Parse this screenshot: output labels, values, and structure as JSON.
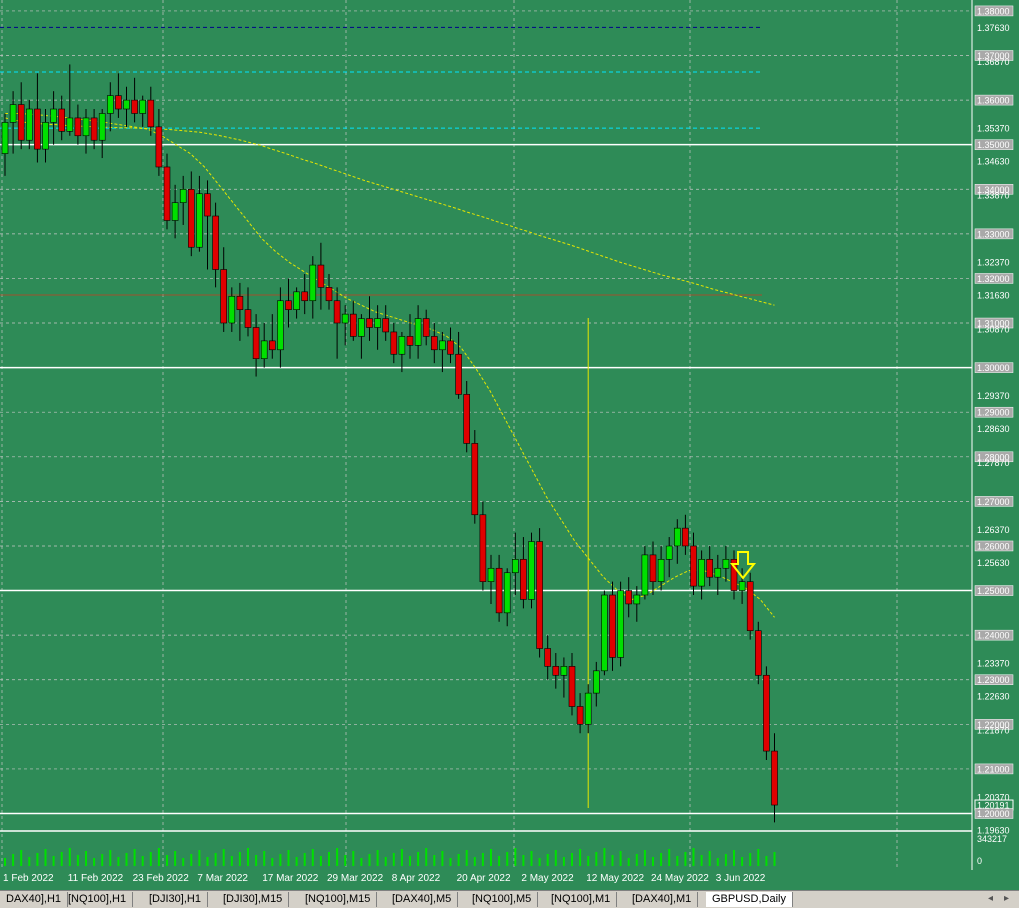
{
  "symbol": "GBPUSD,Daily",
  "price_axis": {
    "labels": [
      {
        "v": 1.38,
        "t": "1.38000",
        "boxed": true
      },
      {
        "v": 1.3763,
        "t": "1.37630",
        "boxed": false
      },
      {
        "v": 1.37,
        "t": "1.37000",
        "boxed": true
      },
      {
        "v": 1.3687,
        "t": "1.36870",
        "boxed": false
      },
      {
        "v": 1.36,
        "t": "1.36000",
        "boxed": true
      },
      {
        "v": 1.3537,
        "t": "1.35370",
        "boxed": false
      },
      {
        "v": 1.35,
        "t": "1.35000",
        "boxed": true
      },
      {
        "v": 1.3463,
        "t": "1.34630",
        "boxed": false
      },
      {
        "v": 1.34,
        "t": "1.34000",
        "boxed": true
      },
      {
        "v": 1.3387,
        "t": "1.33870",
        "boxed": false
      },
      {
        "v": 1.33,
        "t": "1.33000",
        "boxed": true
      },
      {
        "v": 1.3237,
        "t": "1.32370",
        "boxed": false
      },
      {
        "v": 1.32,
        "t": "1.32000",
        "boxed": true
      },
      {
        "v": 1.3163,
        "t": "1.31630",
        "boxed": false
      },
      {
        "v": 1.31,
        "t": "1.31000",
        "boxed": true
      },
      {
        "v": 1.3087,
        "t": "1.30870",
        "boxed": false
      },
      {
        "v": 1.3,
        "t": "1.30000",
        "boxed": true
      },
      {
        "v": 1.2937,
        "t": "1.29370",
        "boxed": false
      },
      {
        "v": 1.29,
        "t": "1.29000",
        "boxed": true
      },
      {
        "v": 1.2863,
        "t": "1.28630",
        "boxed": false
      },
      {
        "v": 1.28,
        "t": "1.28000",
        "boxed": true
      },
      {
        "v": 1.2787,
        "t": "1.27870",
        "boxed": false
      },
      {
        "v": 1.27,
        "t": "1.27000",
        "boxed": true
      },
      {
        "v": 1.2637,
        "t": "1.26370",
        "boxed": false
      },
      {
        "v": 1.26,
        "t": "1.26000",
        "boxed": true
      },
      {
        "v": 1.2563,
        "t": "1.25630",
        "boxed": false
      },
      {
        "v": 1.25,
        "t": "1.25000",
        "boxed": true
      },
      {
        "v": 1.24,
        "t": "1.24000",
        "boxed": true
      },
      {
        "v": 1.2337,
        "t": "1.23370",
        "boxed": false
      },
      {
        "v": 1.23,
        "t": "1.23000",
        "boxed": true
      },
      {
        "v": 1.2263,
        "t": "1.22630",
        "boxed": false
      },
      {
        "v": 1.22,
        "t": "1.22000",
        "boxed": true
      },
      {
        "v": 1.2187,
        "t": "1.21870",
        "boxed": false
      },
      {
        "v": 1.21,
        "t": "1.21000",
        "boxed": true
      },
      {
        "v": 1.2037,
        "t": "1.20370",
        "boxed": false
      },
      {
        "v": 1.2019,
        "t": "1.20191",
        "boxed": true,
        "current": true
      },
      {
        "v": 1.2,
        "t": "1.20000",
        "boxed": true
      },
      {
        "v": 1.1963,
        "t": "1.19630",
        "boxed": false
      }
    ],
    "range": [
      1.1963,
      1.382
    ]
  },
  "volume_axis": {
    "max_label": "343217",
    "min_label": "0"
  },
  "date_labels": [
    "1 Feb 2022",
    "11 Feb 2022",
    "23 Feb 2022",
    "7 Mar 2022",
    "17 Mar 2022",
    "29 Mar 2022",
    "8 Apr 2022",
    "20 Apr 2022",
    "2 May 2022",
    "12 May 2022",
    "24 May 2022",
    "3 Jun 2022"
  ],
  "horizontal_levels": {
    "white": [
      1.35,
      1.3,
      1.25,
      1.2
    ],
    "dark_blue_dashed": [
      1.3763
    ],
    "cyan_dashed": [
      1.3663,
      1.3537
    ],
    "brown_solid": [
      1.3163
    ]
  },
  "colors": {
    "background": "#2e8b57",
    "bull": "#00e000",
    "bear": "#e00000",
    "wick": "#000000",
    "ma": "#e6e600",
    "grid": "#c8c8c8",
    "cyan": "#00e5ff",
    "yellow_dot": "#ffff00",
    "blue_line": "#00008b"
  },
  "candles": [
    [
      1.348,
      1.357,
      1.343,
      1.355
    ],
    [
      1.355,
      1.362,
      1.348,
      1.359
    ],
    [
      1.359,
      1.364,
      1.349,
      1.351
    ],
    [
      1.351,
      1.36,
      1.349,
      1.358
    ],
    [
      1.358,
      1.366,
      1.346,
      1.349
    ],
    [
      1.349,
      1.358,
      1.346,
      1.355
    ],
    [
      1.355,
      1.362,
      1.35,
      1.358
    ],
    [
      1.358,
      1.361,
      1.351,
      1.353
    ],
    [
      1.353,
      1.368,
      1.352,
      1.356
    ],
    [
      1.356,
      1.359,
      1.35,
      1.352
    ],
    [
      1.352,
      1.358,
      1.348,
      1.356
    ],
    [
      1.356,
      1.358,
      1.349,
      1.351
    ],
    [
      1.351,
      1.358,
      1.347,
      1.357
    ],
    [
      1.357,
      1.364,
      1.353,
      1.361
    ],
    [
      1.361,
      1.366,
      1.356,
      1.358
    ],
    [
      1.358,
      1.363,
      1.354,
      1.36
    ],
    [
      1.36,
      1.365,
      1.355,
      1.357
    ],
    [
      1.357,
      1.361,
      1.354,
      1.36
    ],
    [
      1.36,
      1.363,
      1.352,
      1.354
    ],
    [
      1.354,
      1.358,
      1.343,
      1.345
    ],
    [
      1.345,
      1.348,
      1.331,
      1.333
    ],
    [
      1.333,
      1.341,
      1.329,
      1.337
    ],
    [
      1.337,
      1.343,
      1.332,
      1.34
    ],
    [
      1.34,
      1.344,
      1.325,
      1.327
    ],
    [
      1.327,
      1.343,
      1.326,
      1.339
    ],
    [
      1.339,
      1.342,
      1.322,
      1.334
    ],
    [
      1.334,
      1.337,
      1.318,
      1.322
    ],
    [
      1.322,
      1.327,
      1.308,
      1.31
    ],
    [
      1.31,
      1.318,
      1.308,
      1.316
    ],
    [
      1.316,
      1.319,
      1.306,
      1.313
    ],
    [
      1.313,
      1.318,
      1.307,
      1.309
    ],
    [
      1.309,
      1.312,
      1.298,
      1.302
    ],
    [
      1.302,
      1.31,
      1.3,
      1.306
    ],
    [
      1.306,
      1.312,
      1.302,
      1.304
    ],
    [
      1.304,
      1.318,
      1.3,
      1.315
    ],
    [
      1.315,
      1.32,
      1.309,
      1.313
    ],
    [
      1.313,
      1.318,
      1.311,
      1.317
    ],
    [
      1.317,
      1.321,
      1.312,
      1.315
    ],
    [
      1.315,
      1.325,
      1.311,
      1.323
    ],
    [
      1.323,
      1.328,
      1.313,
      1.318
    ],
    [
      1.318,
      1.321,
      1.313,
      1.315
    ],
    [
      1.315,
      1.318,
      1.302,
      1.31
    ],
    [
      1.31,
      1.314,
      1.305,
      1.312
    ],
    [
      1.312,
      1.315,
      1.306,
      1.307
    ],
    [
      1.307,
      1.312,
      1.302,
      1.311
    ],
    [
      1.311,
      1.316,
      1.306,
      1.309
    ],
    [
      1.309,
      1.314,
      1.304,
      1.311
    ],
    [
      1.311,
      1.314,
      1.306,
      1.308
    ],
    [
      1.308,
      1.31,
      1.301,
      1.303
    ],
    [
      1.303,
      1.308,
      1.299,
      1.307
    ],
    [
      1.307,
      1.312,
      1.302,
      1.305
    ],
    [
      1.305,
      1.314,
      1.302,
      1.311
    ],
    [
      1.311,
      1.313,
      1.305,
      1.307
    ],
    [
      1.307,
      1.31,
      1.301,
      1.304
    ],
    [
      1.304,
      1.308,
      1.299,
      1.306
    ],
    [
      1.306,
      1.309,
      1.301,
      1.303
    ],
    [
      1.303,
      1.308,
      1.293,
      1.294
    ],
    [
      1.294,
      1.297,
      1.281,
      1.283
    ],
    [
      1.283,
      1.286,
      1.265,
      1.267
    ],
    [
      1.267,
      1.27,
      1.25,
      1.252
    ],
    [
      1.252,
      1.258,
      1.247,
      1.255
    ],
    [
      1.255,
      1.258,
      1.243,
      1.245
    ],
    [
      1.245,
      1.255,
      1.242,
      1.254
    ],
    [
      1.254,
      1.263,
      1.249,
      1.257
    ],
    [
      1.257,
      1.262,
      1.246,
      1.248
    ],
    [
      1.248,
      1.263,
      1.246,
      1.261
    ],
    [
      1.261,
      1.264,
      1.235,
      1.237
    ],
    [
      1.237,
      1.24,
      1.23,
      1.233
    ],
    [
      1.233,
      1.236,
      1.228,
      1.231
    ],
    [
      1.231,
      1.235,
      1.226,
      1.233
    ],
    [
      1.233,
      1.236,
      1.222,
      1.224
    ],
    [
      1.224,
      1.227,
      1.218,
      1.22
    ],
    [
      1.22,
      1.229,
      1.218,
      1.227
    ],
    [
      1.227,
      1.234,
      1.224,
      1.232
    ],
    [
      1.232,
      1.25,
      1.231,
      1.249
    ],
    [
      1.249,
      1.252,
      1.232,
      1.235
    ],
    [
      1.235,
      1.252,
      1.233,
      1.25
    ],
    [
      1.25,
      1.253,
      1.244,
      1.247
    ],
    [
      1.247,
      1.251,
      1.243,
      1.249
    ],
    [
      1.249,
      1.26,
      1.248,
      1.258
    ],
    [
      1.258,
      1.261,
      1.249,
      1.252
    ],
    [
      1.252,
      1.26,
      1.25,
      1.257
    ],
    [
      1.257,
      1.262,
      1.253,
      1.26
    ],
    [
      1.26,
      1.266,
      1.256,
      1.264
    ],
    [
      1.264,
      1.267,
      1.258,
      1.26
    ],
    [
      1.26,
      1.263,
      1.249,
      1.251
    ],
    [
      1.251,
      1.259,
      1.248,
      1.257
    ],
    [
      1.257,
      1.26,
      1.251,
      1.253
    ],
    [
      1.253,
      1.258,
      1.249,
      1.255
    ],
    [
      1.255,
      1.26,
      1.252,
      1.257
    ],
    [
      1.257,
      1.259,
      1.248,
      1.25
    ],
    [
      1.25,
      1.255,
      1.247,
      1.252
    ],
    [
      1.252,
      1.254,
      1.239,
      1.241
    ],
    [
      1.241,
      1.243,
      1.229,
      1.231
    ],
    [
      1.231,
      1.233,
      1.212,
      1.214
    ],
    [
      1.214,
      1.218,
      1.198,
      1.2019
    ]
  ],
  "bar_index_end": 95,
  "date_label_bars": [
    0,
    8,
    16,
    24,
    32,
    40,
    48,
    56,
    64,
    72,
    80,
    88
  ],
  "ma_values": [
    1.356,
    1.3555,
    1.355,
    1.3548,
    1.3546,
    1.3545,
    1.3543,
    1.3542,
    1.3541,
    1.354,
    1.3539,
    1.3538,
    1.3538,
    1.3537,
    1.3536,
    1.3535,
    1.3534,
    1.3532,
    1.353,
    1.3528,
    1.3524,
    1.352,
    1.3515,
    1.351,
    1.3504,
    1.3498,
    1.349,
    1.3483,
    1.3475,
    1.3467,
    1.346,
    1.3452,
    1.3444,
    1.3436,
    1.3428,
    1.342,
    1.3413,
    1.3406,
    1.3399,
    1.3392,
    1.3385,
    1.3378,
    1.3371,
    1.3364,
    1.3357,
    1.3349,
    1.3342,
    1.3335,
    1.3327,
    1.332,
    1.3312,
    1.3305,
    1.3297,
    1.329,
    1.3283,
    1.3276,
    1.3268,
    1.326,
    1.3252,
    1.3244,
    1.3236,
    1.3229,
    1.3222,
    1.3215,
    1.3208,
    1.3202,
    1.3196,
    1.319,
    1.3183,
    1.3176,
    1.317,
    1.3164,
    1.3158,
    1.3152,
    1.3146,
    1.314
  ],
  "ma2_values": [
    1.357,
    1.357,
    1.3568,
    1.3565,
    1.3562,
    1.3558,
    1.3554,
    1.355,
    1.3545,
    1.354,
    1.3535,
    1.352,
    1.35,
    1.348,
    1.345,
    1.341,
    1.337,
    1.333,
    1.329,
    1.326,
    1.3235,
    1.3215,
    1.3195,
    1.3175,
    1.3155,
    1.314,
    1.3125,
    1.3115,
    1.3105,
    1.3095,
    1.3085,
    1.307,
    1.3045,
    1.3,
    1.295,
    1.289,
    1.283,
    1.277,
    1.271,
    1.266,
    1.261,
    1.257,
    1.253,
    1.25,
    1.248,
    1.249,
    1.251,
    1.253,
    1.2545,
    1.2545,
    1.2535,
    1.252,
    1.2505,
    1.248,
    1.244
  ],
  "vertical_marker_bar": 72
}
